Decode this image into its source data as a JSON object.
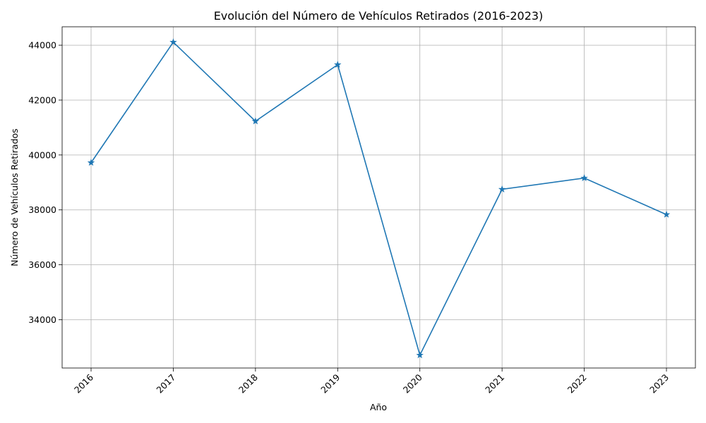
{
  "chart_data": {
    "type": "line",
    "title": "Evolución del Número de Vehículos Retirados (2016-2023)",
    "xlabel": "Año",
    "ylabel": "Número de Vehículos Retirados",
    "categories": [
      "2016",
      "2017",
      "2018",
      "2019",
      "2020",
      "2021",
      "2022",
      "2023"
    ],
    "series": [
      {
        "name": "Vehículos Retirados",
        "color": "#1f77b4",
        "marker": "star",
        "values": [
          39720,
          44110,
          41230,
          43290,
          32710,
          38750,
          39160,
          37830
        ]
      }
    ],
    "yticks": [
      34000,
      36000,
      38000,
      40000,
      42000,
      44000
    ],
    "ylim": [
      32240,
      44670
    ],
    "grid": true,
    "xtick_rotation": 45
  }
}
